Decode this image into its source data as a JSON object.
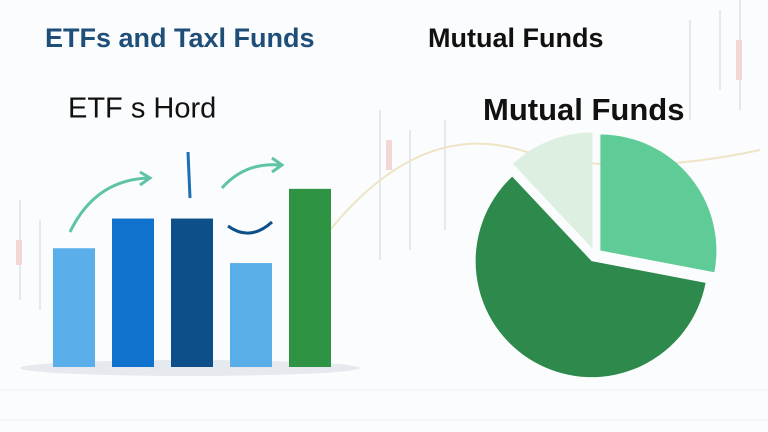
{
  "header": {
    "left": "ETFs and Taxl Funds",
    "right": "Mutual Funds"
  },
  "chart_data": [
    {
      "type": "bar",
      "title": "ETF s Hord",
      "categories": [
        null,
        null,
        null,
        null,
        null
      ],
      "values": [
        40,
        50,
        50,
        35,
        60
      ],
      "colors": [
        "#5aaeea",
        "#0f72cc",
        "#0d4f88",
        "#59aee8",
        "#2e9444"
      ],
      "ylim": [
        0,
        65
      ]
    },
    {
      "type": "pie",
      "title": "Mutual Funds",
      "categories": [
        null,
        null,
        null
      ],
      "values": [
        28,
        60,
        12
      ],
      "colors": [
        "#5fcb96",
        "#2e8a4c",
        "#dcefe0"
      ]
    }
  ]
}
